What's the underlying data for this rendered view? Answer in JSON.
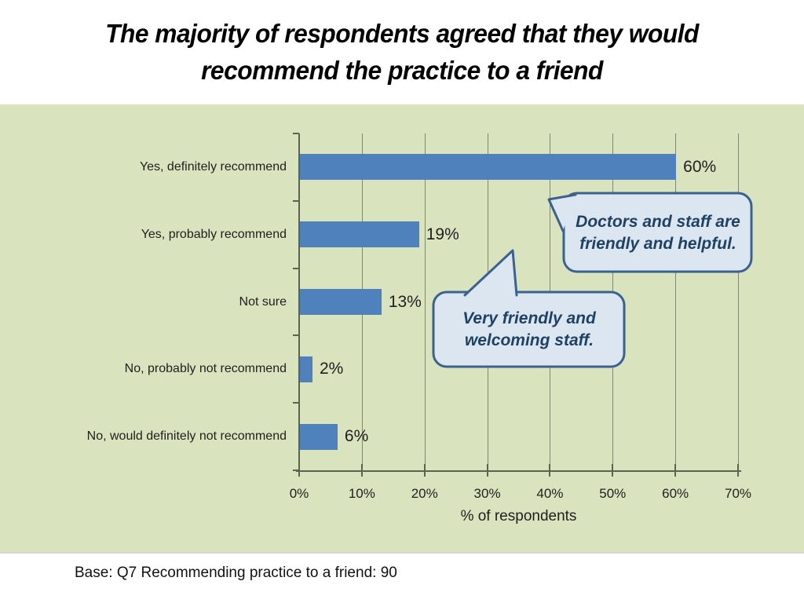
{
  "title": "The majority of respondents agreed that they would recommend the practice to a friend",
  "chart_data": {
    "type": "bar",
    "orientation": "horizontal",
    "title": "",
    "categories": [
      "Yes, definitely recommend",
      "Yes, probably recommend",
      "Not sure",
      "No, probably not recommend",
      "No, would definitely not recommend"
    ],
    "values": [
      60,
      19,
      13,
      2,
      6
    ],
    "value_labels": [
      "60%",
      "19%",
      "13%",
      "2%",
      "6%"
    ],
    "xlabel": "% of respondents",
    "ylabel": "",
    "x_ticks": [
      "0%",
      "10%",
      "20%",
      "30%",
      "40%",
      "50%",
      "60%",
      "70%"
    ],
    "xlim": [
      0,
      70
    ],
    "grid": true,
    "legend": "none",
    "bar_color": "#4f81bd",
    "plot_background": "#d9e3bd"
  },
  "callouts": [
    {
      "text": "Doctors and staff are friendly and helpful."
    },
    {
      "text": "Very friendly and welcoming staff."
    }
  ],
  "footer": {
    "base_note": "Base: Q7 Recommending practice to a friend: 90"
  },
  "colors": {
    "bar": "#4f81bd",
    "chart_background": "#d9e3bd",
    "callout_fill": "#dce6f1",
    "callout_border": "#3a6191",
    "callout_text": "#1f4164"
  }
}
